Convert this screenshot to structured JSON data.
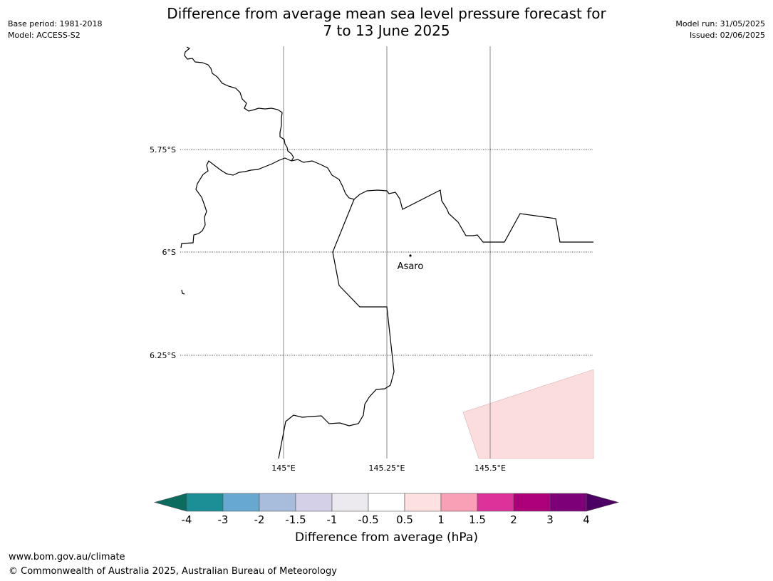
{
  "header": {
    "title_line1": "Difference from average mean sea level pressure forecast for",
    "title_line2": "7 to 13 June 2025",
    "base_period": "Base period: 1981-2018",
    "model": "Model: ACCESS-S2",
    "model_run": "Model run: 31/05/2025",
    "issued": "Issued: 02/06/2025"
  },
  "map": {
    "lat_labels": [
      "5.75°S",
      "6°S",
      "6.25°S"
    ],
    "lon_labels": [
      "145°E",
      "145.25°E",
      "145.5°E"
    ],
    "place": {
      "name": "Asaro"
    },
    "anomaly_fill_color": "#fcdddd"
  },
  "colorbar": {
    "label": "Difference from average (hPa)",
    "ticks": [
      "-4",
      "-3",
      "-2",
      "-1.5",
      "-1",
      "-0.5",
      "0.5",
      "1",
      "1.5",
      "2",
      "3",
      "4"
    ],
    "under_color": "#0b6b5e",
    "over_color": "#4d0064",
    "colors": [
      "#1a8f96",
      "#67a8d0",
      "#a8bcdc",
      "#d4d0e8",
      "#eceaef",
      "#ffffff",
      "#fde0e0",
      "#f9a0b6",
      "#dc339a",
      "#ab0078",
      "#7e0079"
    ]
  },
  "footer": {
    "url": "www.bom.gov.au/climate",
    "copyright": "© Commonwealth of Australia 2025, Australian Bureau of Meteorology"
  }
}
